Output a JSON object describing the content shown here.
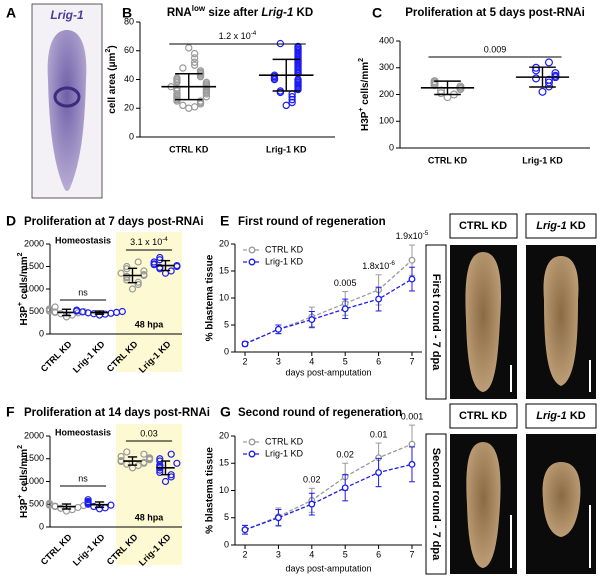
{
  "figures": [
    {
      "panel": "A",
      "label": "Lrig-1"
    },
    {
      "headers": [
        "CTRL KD",
        [
          {
            "i": "Lrig-1"
          },
          " KD"
        ]
      ],
      "side": "First round - 7 dpa"
    },
    {
      "headers": [
        "CTRL KD",
        [
          {
            "i": "Lrig-1"
          },
          " KD"
        ]
      ],
      "side": "Second round - 7 dpa"
    }
  ],
  "chart_data": [
    {
      "panel": "B",
      "type": "dotplot",
      "title": [
        "RNA",
        {
          "sup": "low"
        },
        " size after ",
        {
          "i": "Lrig-1"
        },
        " KD"
      ],
      "ylabel": [
        "cell area (μm",
        {
          "sup": "2"
        },
        ")"
      ],
      "categories": [
        "CTRL KD",
        "Lrig-1 KD"
      ],
      "groups": [
        {
          "color": "#9a9a9a",
          "mean": 35,
          "sd": 9,
          "values": [
            20,
            21,
            22,
            23,
            24,
            25,
            25,
            26,
            27,
            28,
            28,
            29,
            30,
            30,
            31,
            32,
            32,
            33,
            34,
            34,
            35,
            35,
            36,
            37,
            38,
            38,
            39,
            40,
            41,
            42,
            43,
            44,
            45,
            46,
            48,
            50,
            52,
            55,
            58,
            62
          ]
        },
        {
          "color": "#1c1cf0",
          "mean": 43,
          "sd": 11,
          "values": [
            22,
            24,
            26,
            28,
            30,
            31,
            32,
            33,
            34,
            35,
            36,
            37,
            38,
            39,
            40,
            40,
            41,
            42,
            43,
            44,
            45,
            46,
            47,
            48,
            49,
            50,
            51,
            52,
            53,
            54,
            55,
            56,
            57,
            58,
            59,
            60,
            61,
            62,
            63,
            65
          ]
        }
      ],
      "ylim": [
        0,
        80
      ],
      "yticks": [
        0,
        20,
        40,
        60,
        80
      ],
      "significance": [
        [
          "1.2 x 10",
          {
            "sup": "-4"
          }
        ]
      ]
    },
    {
      "panel": "C",
      "type": "dotplot",
      "title": "Proliferation at 5 days post-RNAi",
      "ylabel": [
        "H3P",
        {
          "sup": "+"
        },
        " cells/mm",
        {
          "sup": "2"
        }
      ],
      "categories": [
        "CTRL KD",
        "Lrig-1 KD"
      ],
      "groups": [
        {
          "color": "#9a9a9a",
          "mean": 225,
          "sd": 25,
          "values": [
            190,
            200,
            205,
            215,
            220,
            225,
            230,
            235,
            240,
            245,
            250
          ]
        },
        {
          "color": "#1c1cf0",
          "mean": 265,
          "sd": 37,
          "values": [
            210,
            230,
            245,
            255,
            260,
            265,
            270,
            280,
            290,
            300,
            320
          ]
        }
      ],
      "ylim": [
        0,
        400
      ],
      "yticks": [
        0,
        100,
        200,
        300,
        400
      ],
      "significance": [
        "0.009"
      ]
    },
    {
      "panel": "D",
      "type": "dotplot",
      "title": "Proliferation at 7 days post-RNAi",
      "ylabel": [
        "H3P",
        {
          "sup": "+"
        },
        " cells/mm",
        {
          "sup": "2"
        }
      ],
      "categories": [
        "CTRL KD",
        "Lrig-1 KD",
        "CTRL KD",
        "Lrig-1 KD"
      ],
      "groups": [
        {
          "color": "#9a9a9a",
          "mean": 480,
          "sd": 70,
          "values": [
            380,
            420,
            450,
            470,
            480,
            490,
            500,
            510,
            530,
            560,
            600
          ]
        },
        {
          "color": "#1c1cf0",
          "mean": 475,
          "sd": 35,
          "values": [
            420,
            440,
            450,
            460,
            470,
            480,
            490,
            500,
            510,
            530
          ]
        },
        {
          "color": "#9a9a9a",
          "mean": 1300,
          "sd": 160,
          "values": [
            1000,
            1100,
            1150,
            1200,
            1250,
            1280,
            1300,
            1320,
            1350,
            1400,
            1450,
            1500,
            1600
          ]
        },
        {
          "color": "#1c1cf0",
          "mean": 1520,
          "sd": 110,
          "values": [
            1350,
            1400,
            1450,
            1480,
            1500,
            1520,
            1540,
            1560,
            1600,
            1650,
            1700
          ]
        }
      ],
      "regions": [
        {
          "label": "Homeostasis"
        },
        {
          "label": "48 hpa",
          "color": "#fdf9d3"
        }
      ],
      "ylim": [
        0,
        2000
      ],
      "yticks": [
        0,
        500,
        1000,
        1500,
        2000
      ],
      "significance": [
        "ns",
        [
          "3.1 x 10",
          {
            "sup": "-4"
          }
        ]
      ]
    },
    {
      "panel": "E",
      "type": "line",
      "title": "First round of regeneration",
      "xlabel": "days post-amputation",
      "ylabel": "% blastema tissue",
      "x": [
        2,
        3,
        4,
        5,
        6,
        7
      ],
      "xlim": [
        1.7,
        7.3
      ],
      "xticks": [
        2,
        3,
        4,
        5,
        6,
        7
      ],
      "ylim": [
        0,
        20
      ],
      "yticks": [
        0,
        5,
        10,
        15,
        20
      ],
      "legend": "top-left",
      "series": [
        {
          "name": "CTRL KD",
          "color": "#9a9a9a",
          "dashed": true,
          "values": [
            1.5,
            4.2,
            6.5,
            9,
            11.5,
            17
          ],
          "errors": [
            0.4,
            0.8,
            1.8,
            2.2,
            2.8,
            2.8
          ]
        },
        {
          "name": "Lrig-1 KD",
          "color": "#1c1cf0",
          "dashed": true,
          "values": [
            1.5,
            4.2,
            6.0,
            8,
            9.8,
            13.5
          ],
          "errors": [
            0.4,
            0.8,
            1.5,
            1.8,
            2.2,
            2.2
          ]
        }
      ],
      "annotation_color": "#1c1cf0",
      "annotations": [
        {
          "x": 5,
          "text": "0.005"
        },
        {
          "x": 6,
          "text": [
            "1.8x10",
            {
              "sup": "-6"
            }
          ]
        },
        {
          "x": 7,
          "text": [
            "1.9x10",
            {
              "sup": "-5"
            }
          ]
        }
      ]
    },
    {
      "panel": "F",
      "type": "dotplot",
      "title": "Proliferation at 14 days post-RNAi",
      "ylabel": [
        "H3P",
        {
          "sup": "+"
        },
        " cells/mm",
        {
          "sup": "2"
        }
      ],
      "categories": [
        "CTRL KD",
        "Lrig-1 KD",
        "CTRL KD",
        "Lrig-1 KD"
      ],
      "groups": [
        {
          "color": "#9a9a9a",
          "mean": 450,
          "sd": 55,
          "values": [
            350,
            380,
            410,
            430,
            450,
            460,
            470,
            480,
            500,
            520
          ]
        },
        {
          "color": "#1c1cf0",
          "mean": 490,
          "sd": 60,
          "values": [
            400,
            420,
            450,
            480,
            500,
            520,
            540,
            560,
            600
          ]
        },
        {
          "color": "#9a9a9a",
          "mean": 1450,
          "sd": 90,
          "values": [
            1300,
            1350,
            1380,
            1400,
            1420,
            1440,
            1460,
            1480,
            1500,
            1520,
            1550,
            1600,
            1650
          ]
        },
        {
          "color": "#1c1cf0",
          "mean": 1300,
          "sd": 150,
          "values": [
            1000,
            1100,
            1150,
            1200,
            1250,
            1300,
            1330,
            1360,
            1400,
            1450,
            1500,
            1600
          ]
        }
      ],
      "regions": [
        {
          "label": "Homeostasis"
        },
        {
          "label": "48 hpa",
          "color": "#fdf9d3"
        }
      ],
      "ylim": [
        0,
        2000
      ],
      "yticks": [
        0,
        500,
        1000,
        1500,
        2000
      ],
      "significance": [
        "ns",
        "0.03"
      ]
    },
    {
      "panel": "G",
      "type": "line",
      "title": "Second round of regeneration",
      "xlabel": "days post-amputation",
      "ylabel": "% blastema tissue",
      "x": [
        2,
        3,
        4,
        5,
        6,
        7
      ],
      "xlim": [
        1.7,
        7.3
      ],
      "xticks": [
        2,
        3,
        4,
        5,
        6,
        7
      ],
      "ylim": [
        0,
        20
      ],
      "yticks": [
        0,
        5,
        10,
        15,
        20
      ],
      "legend": "top-left",
      "series": [
        {
          "name": "CTRL KD",
          "color": "#9a9a9a",
          "dashed": true,
          "values": [
            2.8,
            5.2,
            8.2,
            12.5,
            16,
            18.5
          ],
          "errors": [
            0.8,
            1.6,
            2.2,
            2.5,
            2.7,
            3.5
          ]
        },
        {
          "name": "Lrig-1 KD",
          "color": "#1c1cf0",
          "dashed": true,
          "values": [
            2.8,
            5,
            7.5,
            10.5,
            13.3,
            14.8
          ],
          "errors": [
            0.8,
            1.5,
            2.0,
            2.4,
            2.6,
            3.2
          ]
        }
      ],
      "annotation_color": "#1c1cf0",
      "annotations": [
        {
          "x": 4,
          "text": "0.02"
        },
        {
          "x": 5,
          "text": "0.02"
        },
        {
          "x": 6,
          "text": "0.01"
        },
        {
          "x": 7,
          "text": "0.001"
        }
      ]
    }
  ]
}
